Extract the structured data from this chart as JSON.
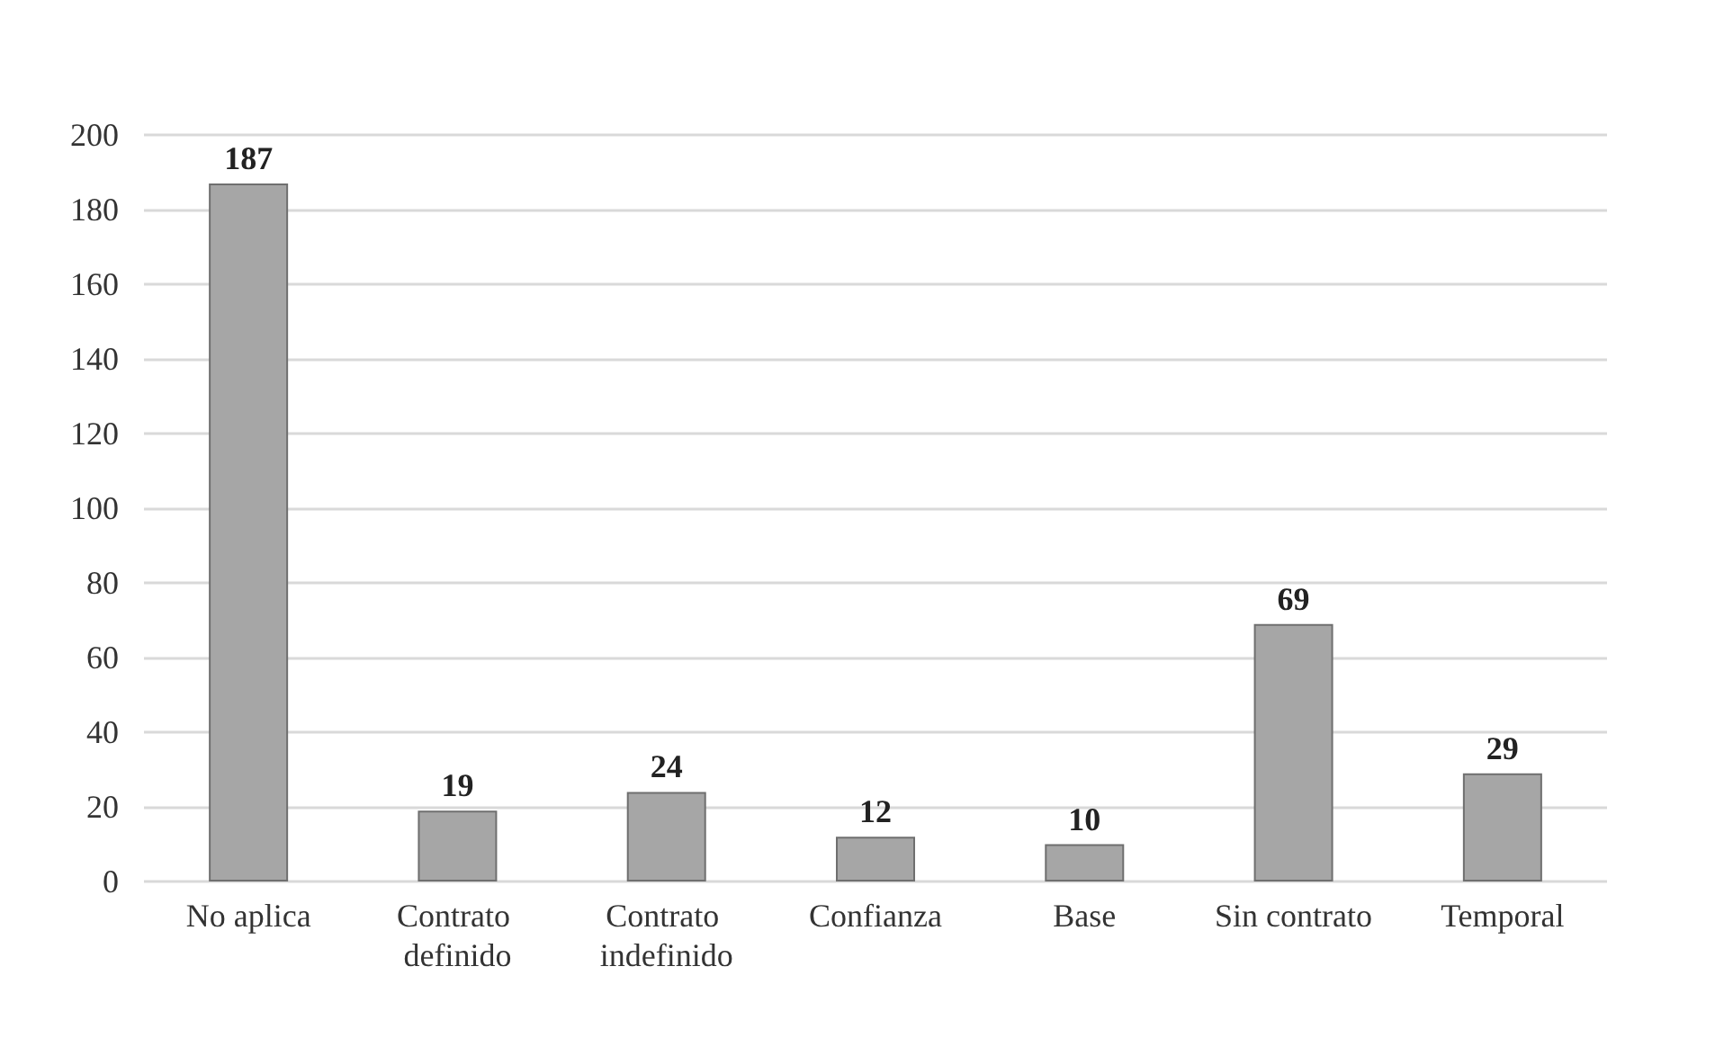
{
  "chart_data": {
    "type": "bar",
    "categories": [
      "No aplica",
      "Contrato definido",
      "Contrato indefinido",
      "Confianza",
      "Base",
      "Sin contrato",
      "Temporal"
    ],
    "values": [
      187,
      19,
      24,
      12,
      10,
      69,
      29
    ],
    "color": "#a6a6a6",
    "ylim": [
      0,
      200
    ],
    "yticks": [
      0,
      20,
      40,
      60,
      80,
      100,
      120,
      140,
      160,
      180,
      200
    ],
    "grid": "y",
    "data_labels": true
  }
}
